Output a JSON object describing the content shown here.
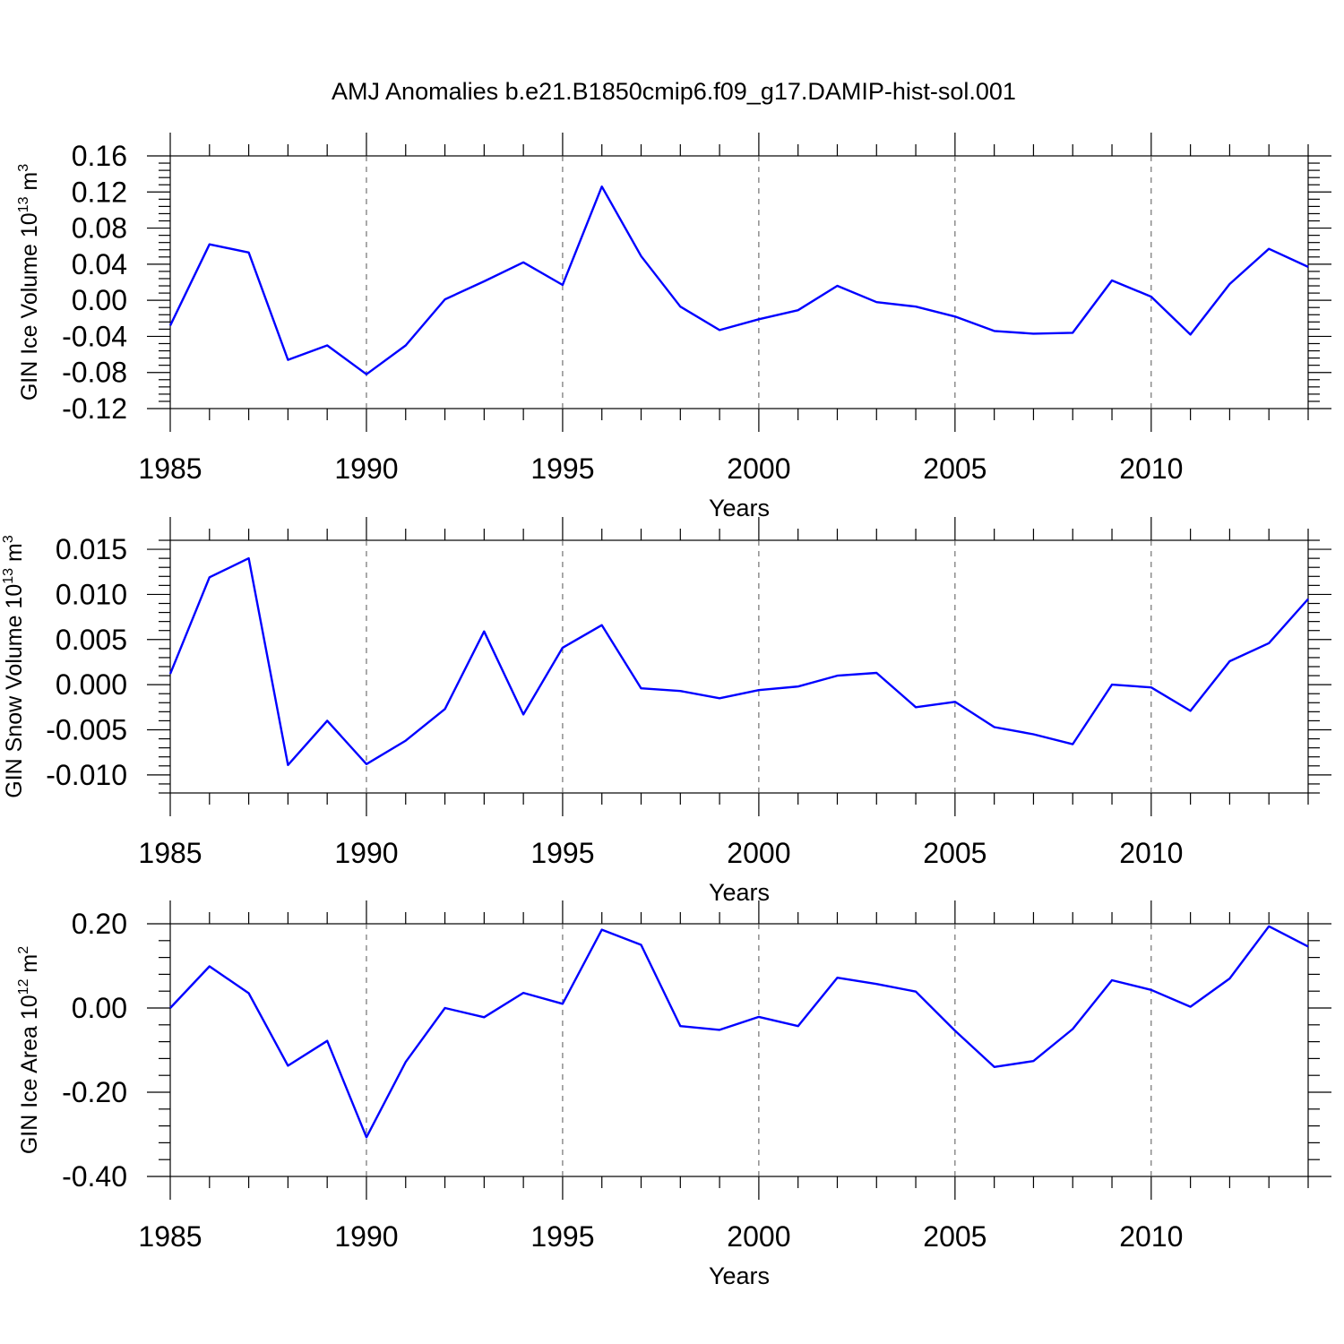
{
  "title": "AMJ Anomalies b.e21.B1850cmip6.f09_g17.DAMIP-hist-sol.001",
  "colors": {
    "line": "#0000ff",
    "grid": "#555555",
    "axis": "#000000"
  },
  "chart_data": [
    {
      "type": "line",
      "ylabel_main": "GIN Ice Volume 10",
      "ylabel_exp": "13",
      "ylabel_unit": " m",
      "ylabel_unit_exp": "3",
      "xlabel": "Years",
      "xlim": [
        1985,
        2014
      ],
      "ylim": [
        -0.12,
        0.16
      ],
      "xticks": [
        "1985",
        "1990",
        "1995",
        "2000",
        "2005",
        "2010"
      ],
      "yticks": [
        "0.16",
        "0.12",
        "0.08",
        "0.04",
        "0.00",
        "-0.04",
        "-0.08",
        "-0.12"
      ],
      "x": [
        1985,
        1986,
        1987,
        1988,
        1989,
        1990,
        1991,
        1992,
        1993,
        1994,
        1995,
        1996,
        1997,
        1998,
        1999,
        2000,
        2001,
        2002,
        2003,
        2004,
        2005,
        2006,
        2007,
        2008,
        2009,
        2010,
        2011,
        2012,
        2013,
        2014
      ],
      "values": [
        -0.028,
        0.062,
        0.053,
        -0.066,
        -0.05,
        -0.082,
        -0.05,
        0.001,
        0.021,
        0.042,
        0.017,
        0.126,
        0.049,
        -0.007,
        -0.033,
        -0.021,
        -0.011,
        0.016,
        -0.002,
        -0.007,
        -0.018,
        -0.034,
        -0.037,
        -0.036,
        0.022,
        0.004,
        -0.038,
        0.018,
        0.057,
        0.037
      ]
    },
    {
      "type": "line",
      "ylabel_main": "GIN Snow Volume 10",
      "ylabel_exp": "13",
      "ylabel_unit": " m",
      "ylabel_unit_exp": "3",
      "xlabel": "Years",
      "xlim": [
        1985,
        2014
      ],
      "ylim": [
        -0.012,
        0.016
      ],
      "xticks": [
        "1985",
        "1990",
        "1995",
        "2000",
        "2005",
        "2010"
      ],
      "yticks": [
        "0.015",
        "0.010",
        "0.005",
        "0.000",
        "-0.005",
        "-0.010"
      ],
      "x": [
        1985,
        1986,
        1987,
        1988,
        1989,
        1990,
        1991,
        1992,
        1993,
        1994,
        1995,
        1996,
        1997,
        1998,
        1999,
        2000,
        2001,
        2002,
        2003,
        2004,
        2005,
        2006,
        2007,
        2008,
        2009,
        2010,
        2011,
        2012,
        2013,
        2014
      ],
      "values": [
        0.0012,
        0.0119,
        0.014,
        -0.0089,
        -0.004,
        -0.0088,
        -0.0062,
        -0.0027,
        0.0059,
        -0.0033,
        0.0041,
        0.0066,
        -0.0004,
        -0.0007,
        -0.0015,
        -0.0006,
        -0.0002,
        0.001,
        0.0013,
        -0.0025,
        -0.0019,
        -0.0047,
        -0.0055,
        -0.0066,
        0.0,
        -0.0003,
        -0.0029,
        0.0026,
        0.0046,
        0.0095
      ]
    },
    {
      "type": "line",
      "ylabel_main": "GIN Ice Area 10",
      "ylabel_exp": "12",
      "ylabel_unit": " m",
      "ylabel_unit_exp": "2",
      "xlabel": "Years",
      "xlim": [
        1985,
        2014
      ],
      "ylim": [
        -0.4,
        0.2
      ],
      "xticks": [
        "1985",
        "1990",
        "1995",
        "2000",
        "2005",
        "2010"
      ],
      "yticks": [
        "0.20",
        "0.00",
        "-0.20",
        "-0.40"
      ],
      "x": [
        1985,
        1986,
        1987,
        1988,
        1989,
        1990,
        1991,
        1992,
        1993,
        1994,
        1995,
        1996,
        1997,
        1998,
        1999,
        2000,
        2001,
        2002,
        2003,
        2004,
        2005,
        2006,
        2007,
        2008,
        2009,
        2010,
        2011,
        2012,
        2013,
        2014
      ],
      "values": [
        0.0,
        0.099,
        0.035,
        -0.137,
        -0.078,
        -0.307,
        -0.128,
        0.0,
        -0.022,
        0.036,
        0.01,
        0.186,
        0.15,
        -0.043,
        -0.052,
        -0.021,
        -0.043,
        0.072,
        0.057,
        0.039,
        -0.054,
        -0.14,
        -0.126,
        -0.05,
        0.066,
        0.043,
        0.003,
        0.07,
        0.194,
        0.146
      ]
    }
  ]
}
